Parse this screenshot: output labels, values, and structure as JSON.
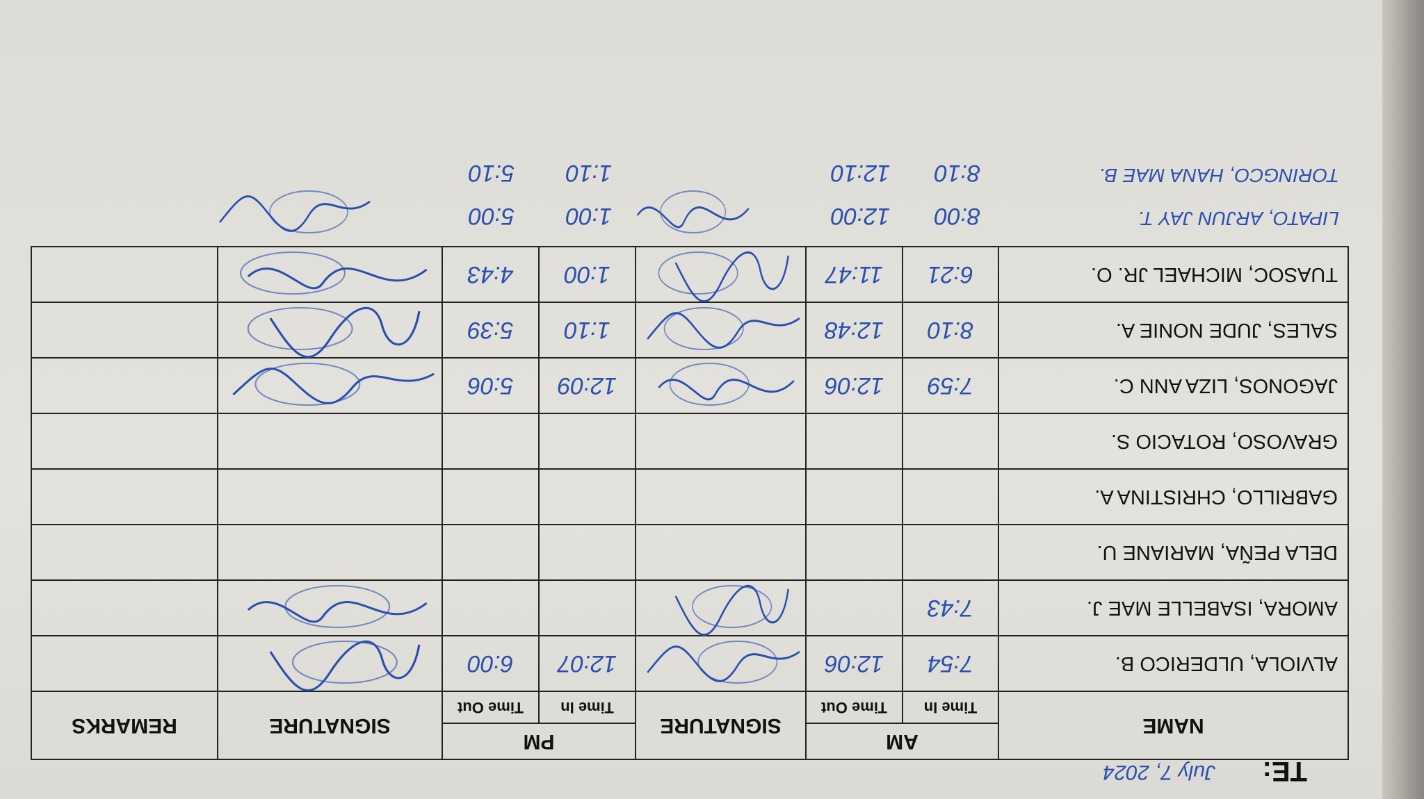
{
  "sheet": {
    "date_label": "TE:",
    "date_value": "July 7, 2024",
    "headers": {
      "name": "NAME",
      "am": "AM",
      "signature": "SIGNATURE",
      "pm": "PM",
      "remarks": "REMARKS",
      "time_in": "Time In",
      "time_out": "Time Out"
    },
    "rows": [
      {
        "name": "ALVIOLA, ULDERICO B.",
        "am_in": "7:54",
        "am_out": "12:06",
        "am_signed": true,
        "pm_in": "12:07",
        "pm_out": "6:00",
        "pm_signed": true,
        "remarks": ""
      },
      {
        "name": "AMORA, ISABELLE MAE J.",
        "am_in": "7:43",
        "am_out": "",
        "am_signed": true,
        "pm_in": "",
        "pm_out": "",
        "pm_signed": true,
        "remarks": ""
      },
      {
        "name": "DELA PEÑA, MARIANE U.",
        "am_in": "",
        "am_out": "",
        "am_signed": false,
        "pm_in": "",
        "pm_out": "",
        "pm_signed": false,
        "remarks": ""
      },
      {
        "name": "GABRILLO, CHRISTINA A.",
        "am_in": "",
        "am_out": "",
        "am_signed": false,
        "pm_in": "",
        "pm_out": "",
        "pm_signed": false,
        "remarks": ""
      },
      {
        "name": "GRAVOSO, ROTACIO S.",
        "am_in": "",
        "am_out": "",
        "am_signed": false,
        "pm_in": "",
        "pm_out": "",
        "pm_signed": false,
        "remarks": ""
      },
      {
        "name": "JAGONOS, LIZA ANN C.",
        "am_in": "7:59",
        "am_out": "12:06",
        "am_signed": true,
        "pm_in": "12:09",
        "pm_out": "5:06",
        "pm_signed": true,
        "remarks": ""
      },
      {
        "name": "SALES, JUDE NONIE A.",
        "am_in": "8:10",
        "am_out": "12:48",
        "am_signed": true,
        "pm_in": "1:10",
        "pm_out": "5:39",
        "pm_signed": true,
        "remarks": ""
      },
      {
        "name": "TUASOC, MICHAEL JR. O.",
        "am_in": "6:21",
        "am_out": "11:47",
        "am_signed": true,
        "pm_in": "1:00",
        "pm_out": "4:43",
        "pm_signed": true,
        "remarks": ""
      }
    ],
    "handwritten_rows": [
      {
        "name": "LIPATO, ARJUN JAY T.",
        "am_in": "8:00",
        "am_out": "12:00",
        "pm_in": "1:00",
        "pm_out": "5:00"
      },
      {
        "name": "TORINGCO, HANA MAE B.",
        "am_in": "8:10",
        "am_out": "12:10",
        "pm_in": "1:10",
        "pm_out": "5:10"
      }
    ],
    "ink_color": "#2a4fb0"
  }
}
